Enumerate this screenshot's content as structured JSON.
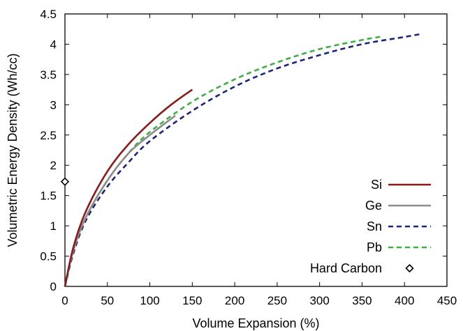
{
  "chart_data": {
    "type": "line",
    "xlabel": "Volume Expansion (%)",
    "ylabel": "Volumetric Energy Density (Wh/cc)",
    "xlim": [
      0,
      450
    ],
    "ylim": [
      0,
      4.5
    ],
    "x_ticks": [
      "0",
      "50",
      "100",
      "150",
      "200",
      "250",
      "300",
      "350",
      "400",
      "450"
    ],
    "y_ticks": [
      "0",
      "0.5",
      "1",
      "1.5",
      "2",
      "2.5",
      "3",
      "3.5",
      "4",
      "4.5"
    ],
    "x_tick_values": [
      0,
      50,
      100,
      150,
      200,
      250,
      300,
      350,
      400,
      450
    ],
    "y_tick_values": [
      0,
      0.5,
      1,
      1.5,
      2,
      2.5,
      3,
      3.5,
      4,
      4.5
    ],
    "grid": false,
    "legend_position": "bottom-right",
    "series": [
      {
        "name": "Si",
        "style": "solid",
        "color": "#8b1a1a",
        "x": [
          0,
          10,
          25,
          50,
          75,
          100,
          125,
          150
        ],
        "y": [
          0,
          0.65,
          1.25,
          1.9,
          2.35,
          2.7,
          3.0,
          3.25
        ]
      },
      {
        "name": "Ge",
        "style": "solid",
        "color": "#8c8c8c",
        "x": [
          0,
          10,
          25,
          50,
          75,
          100,
          130
        ],
        "y": [
          0,
          0.6,
          1.15,
          1.75,
          2.2,
          2.5,
          2.82
        ]
      },
      {
        "name": "Sn",
        "style": "dashed",
        "color": "#1a237e",
        "x": [
          0,
          10,
          25,
          50,
          75,
          100,
          150,
          200,
          250,
          300,
          350,
          400,
          420
        ],
        "y": [
          0,
          0.55,
          1.1,
          1.65,
          2.05,
          2.4,
          2.9,
          3.3,
          3.6,
          3.82,
          4.0,
          4.12,
          4.17
        ]
      },
      {
        "name": "Pb",
        "style": "dashed",
        "color": "#3cb043",
        "x": [
          0,
          10,
          25,
          50,
          75,
          100,
          150,
          200,
          250,
          300,
          350,
          375
        ],
        "y": [
          0,
          0.6,
          1.15,
          1.75,
          2.2,
          2.55,
          3.05,
          3.42,
          3.7,
          3.92,
          4.07,
          4.13
        ]
      },
      {
        "name": "Hard Carbon",
        "style": "marker",
        "marker": "diamond",
        "color": "#000000",
        "x": [
          0
        ],
        "y": [
          1.73
        ]
      }
    ]
  }
}
